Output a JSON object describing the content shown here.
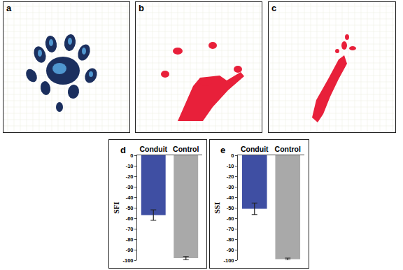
{
  "panels": [
    {
      "label": "a"
    },
    {
      "label": "b"
    },
    {
      "label": "c"
    }
  ],
  "chart_data": [
    {
      "type": "bar",
      "annotations": [
        {
          "text": "d"
        }
      ],
      "y_label": "SFI",
      "categories": [
        "Conduit",
        "Control"
      ],
      "values": [
        -57,
        -98
      ],
      "errors": [
        5,
        1.5
      ],
      "colors": [
        "#3f4fa3",
        "#a9a9a9"
      ],
      "ylim": [
        -100,
        0
      ],
      "yticks": [
        0,
        -10,
        -20,
        -30,
        -40,
        -50,
        -60,
        -70,
        -80,
        -90,
        -100
      ],
      "grid": false
    },
    {
      "type": "bar",
      "annotations": [
        {
          "text": "e"
        }
      ],
      "y_label": "SSI",
      "categories": [
        "Conduit",
        "Control"
      ],
      "values": [
        -51,
        -99
      ],
      "errors": [
        5.5,
        1
      ],
      "colors": [
        "#3f4fa3",
        "#a9a9a9"
      ],
      "ylim": [
        -100,
        0
      ],
      "yticks": [
        0,
        -10,
        -20,
        -30,
        -40,
        -50,
        -60,
        -70,
        -80,
        -90,
        -100
      ],
      "grid": false
    }
  ]
}
